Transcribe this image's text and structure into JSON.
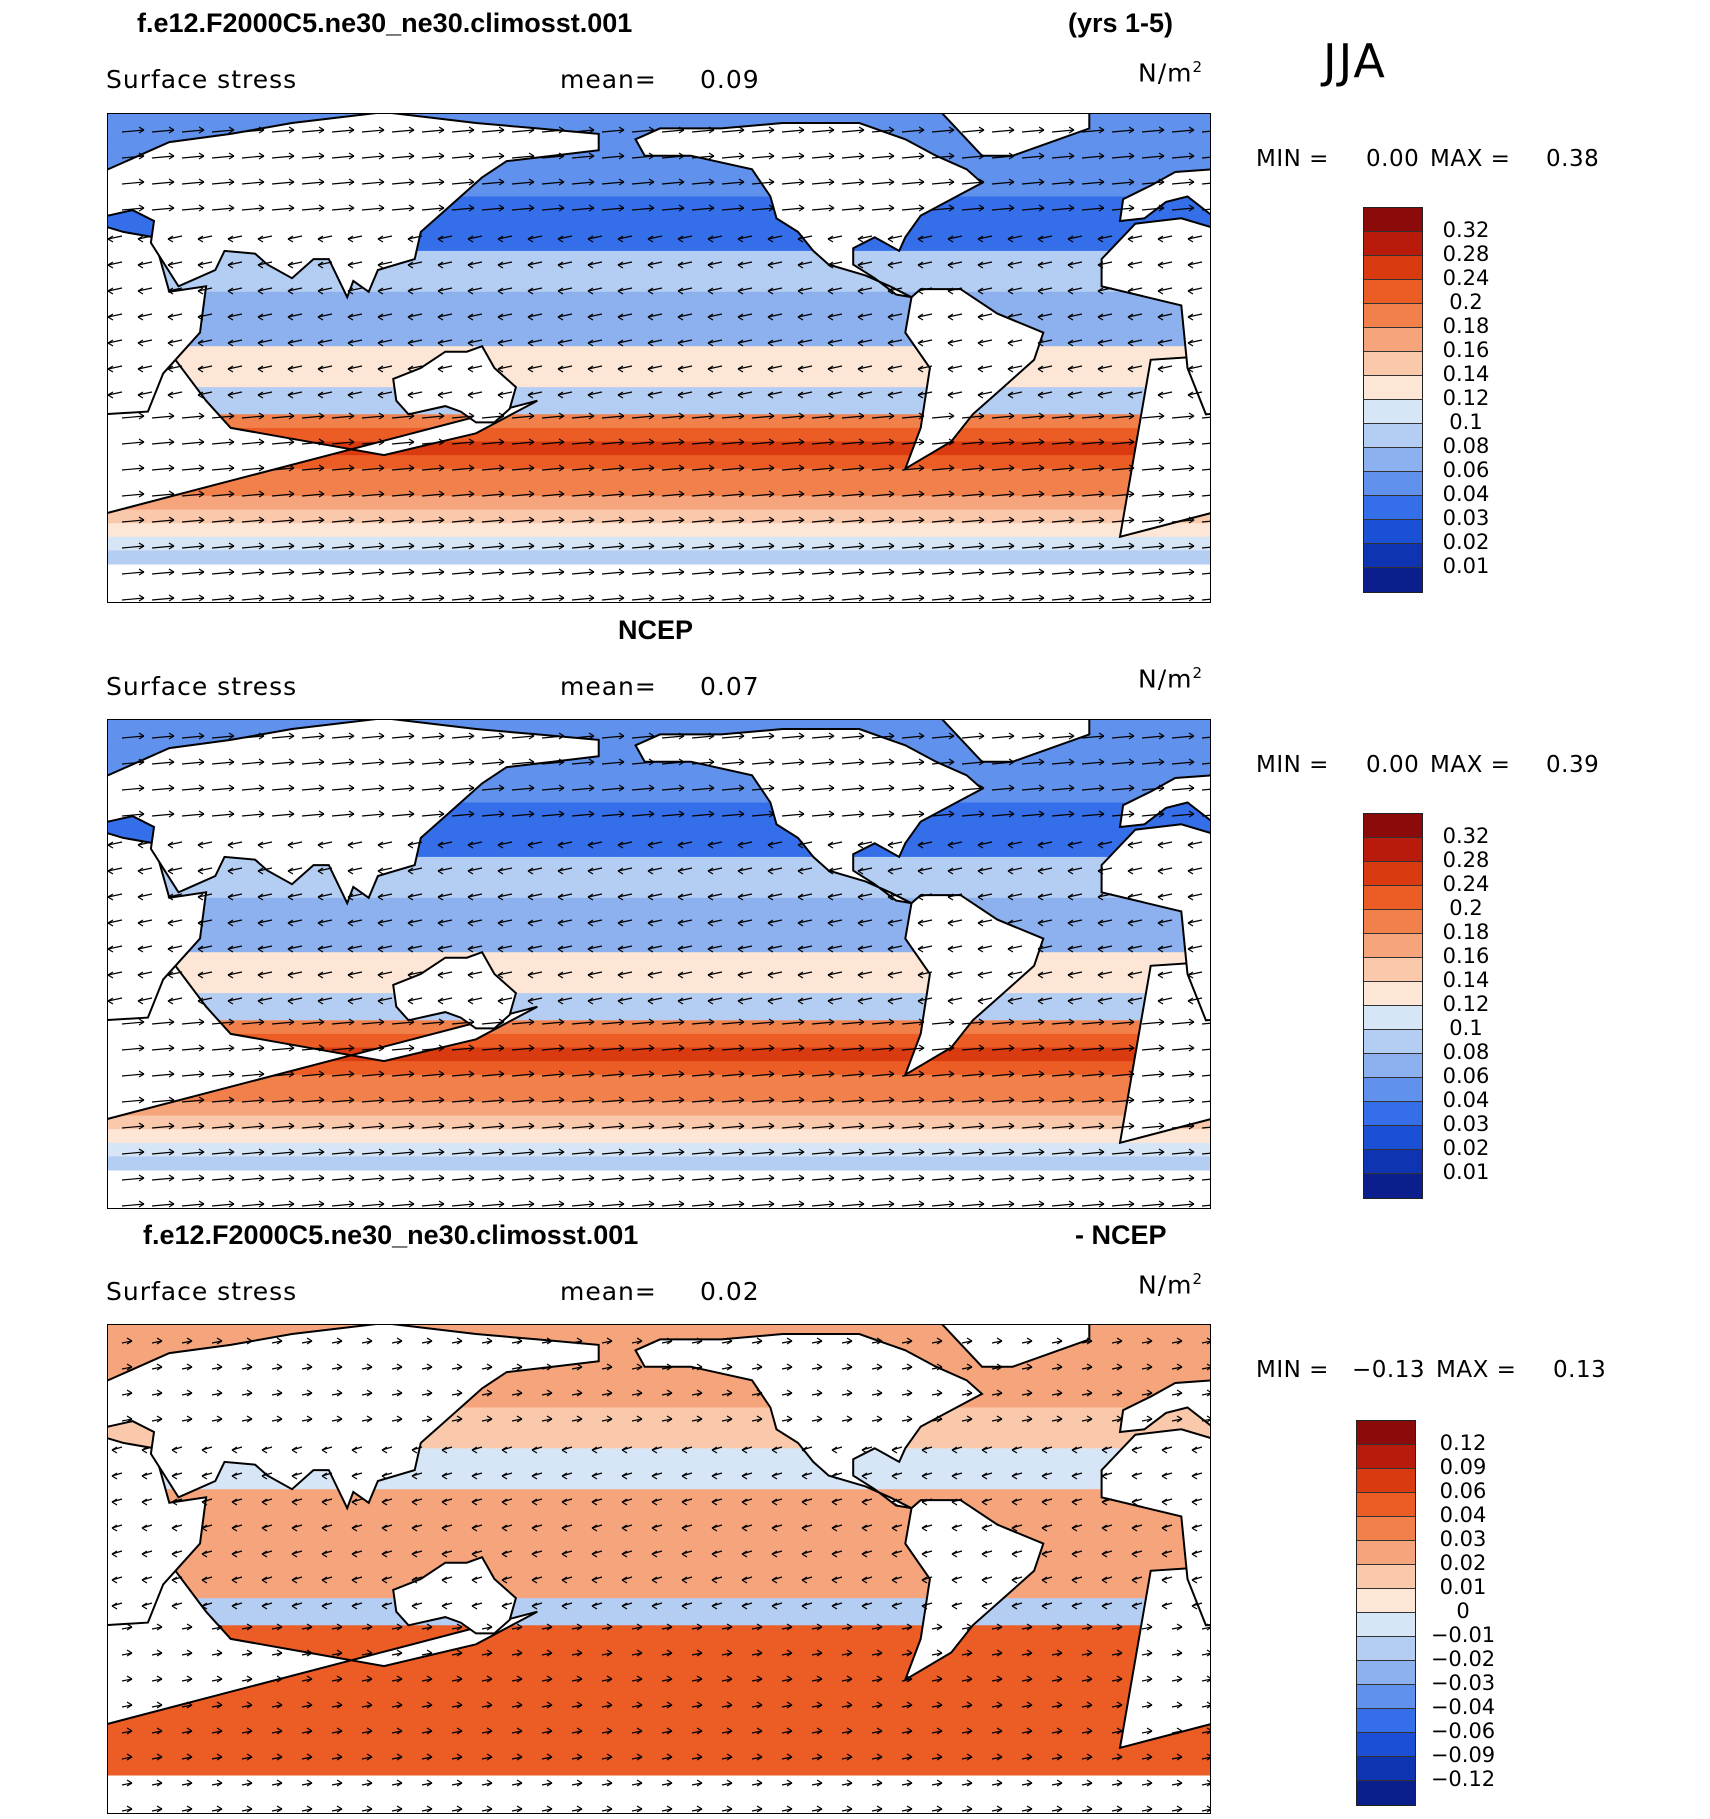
{
  "season": "JJA",
  "panels": [
    {
      "header_left": "f.e12.F2000C5.ne30_ne30.climosst.001",
      "header_right": "(yrs 1-5)",
      "variable": "Surface stress",
      "mean_label": "mean=",
      "mean_value": "0.09",
      "units_label": "N/m",
      "units_exp": "2",
      "min_label": "MIN =",
      "min_value": "0.00",
      "max_label": "MAX =",
      "max_value": "0.38",
      "colorbar": {
        "labels": [
          "0.32",
          "0.28",
          "0.24",
          "0.2",
          "0.18",
          "0.16",
          "0.14",
          "0.12",
          "0.1",
          "0.08",
          "0.06",
          "0.04",
          "0.03",
          "0.02",
          "0.01"
        ],
        "colors": [
          "#8b0a0a",
          "#b81a0c",
          "#d93a10",
          "#ec5c25",
          "#f2804b",
          "#f6a47b",
          "#fac8aa",
          "#fde6d6",
          "#d7e6f7",
          "#b4cdf2",
          "#8cb1ee",
          "#6091ec",
          "#346ee8",
          "#1b4fd6",
          "#0e34b2",
          "#0a1f8c"
        ],
        "min_value": 0.0,
        "max_value": 0.38
      }
    },
    {
      "header_left": "",
      "header_center": "NCEP",
      "header_right": "",
      "variable": "Surface stress",
      "mean_label": "mean=",
      "mean_value": "0.07",
      "units_label": "N/m",
      "units_exp": "2",
      "min_label": "MIN =",
      "min_value": "0.00",
      "max_label": "MAX =",
      "max_value": "0.39",
      "colorbar": {
        "labels": [
          "0.32",
          "0.28",
          "0.24",
          "0.2",
          "0.18",
          "0.16",
          "0.14",
          "0.12",
          "0.1",
          "0.08",
          "0.06",
          "0.04",
          "0.03",
          "0.02",
          "0.01"
        ],
        "colors": [
          "#8b0a0a",
          "#b81a0c",
          "#d93a10",
          "#ec5c25",
          "#f2804b",
          "#f6a47b",
          "#fac8aa",
          "#fde6d6",
          "#d7e6f7",
          "#b4cdf2",
          "#8cb1ee",
          "#6091ec",
          "#346ee8",
          "#1b4fd6",
          "#0e34b2",
          "#0a1f8c"
        ],
        "min_value": 0.0,
        "max_value": 0.39
      }
    },
    {
      "header_left": "f.e12.F2000C5.ne30_ne30.climosst.001",
      "header_right": "- NCEP",
      "variable": "Surface stress",
      "mean_label": "mean=",
      "mean_value": "0.02",
      "units_label": "N/m",
      "units_exp": "2",
      "min_label": "MIN =",
      "min_value": "−0.13",
      "max_label": "MAX =",
      "max_value": "0.13",
      "colorbar": {
        "labels": [
          "0.12",
          "0.09",
          "0.06",
          "0.04",
          "0.03",
          "0.02",
          "0.01",
          "0",
          "−0.01",
          "−0.02",
          "−0.03",
          "−0.04",
          "−0.06",
          "−0.09",
          "−0.12"
        ],
        "colors": [
          "#8b0a0a",
          "#b81a0c",
          "#d93a10",
          "#ec5c25",
          "#f2804b",
          "#f6a47b",
          "#fac8aa",
          "#fde6d6",
          "#d7e6f7",
          "#b4cdf2",
          "#8cb1ee",
          "#6091ec",
          "#346ee8",
          "#1b4fd6",
          "#0e34b2",
          "#0a1f8c"
        ],
        "min_value": -0.13,
        "max_value": 0.13
      }
    }
  ]
}
